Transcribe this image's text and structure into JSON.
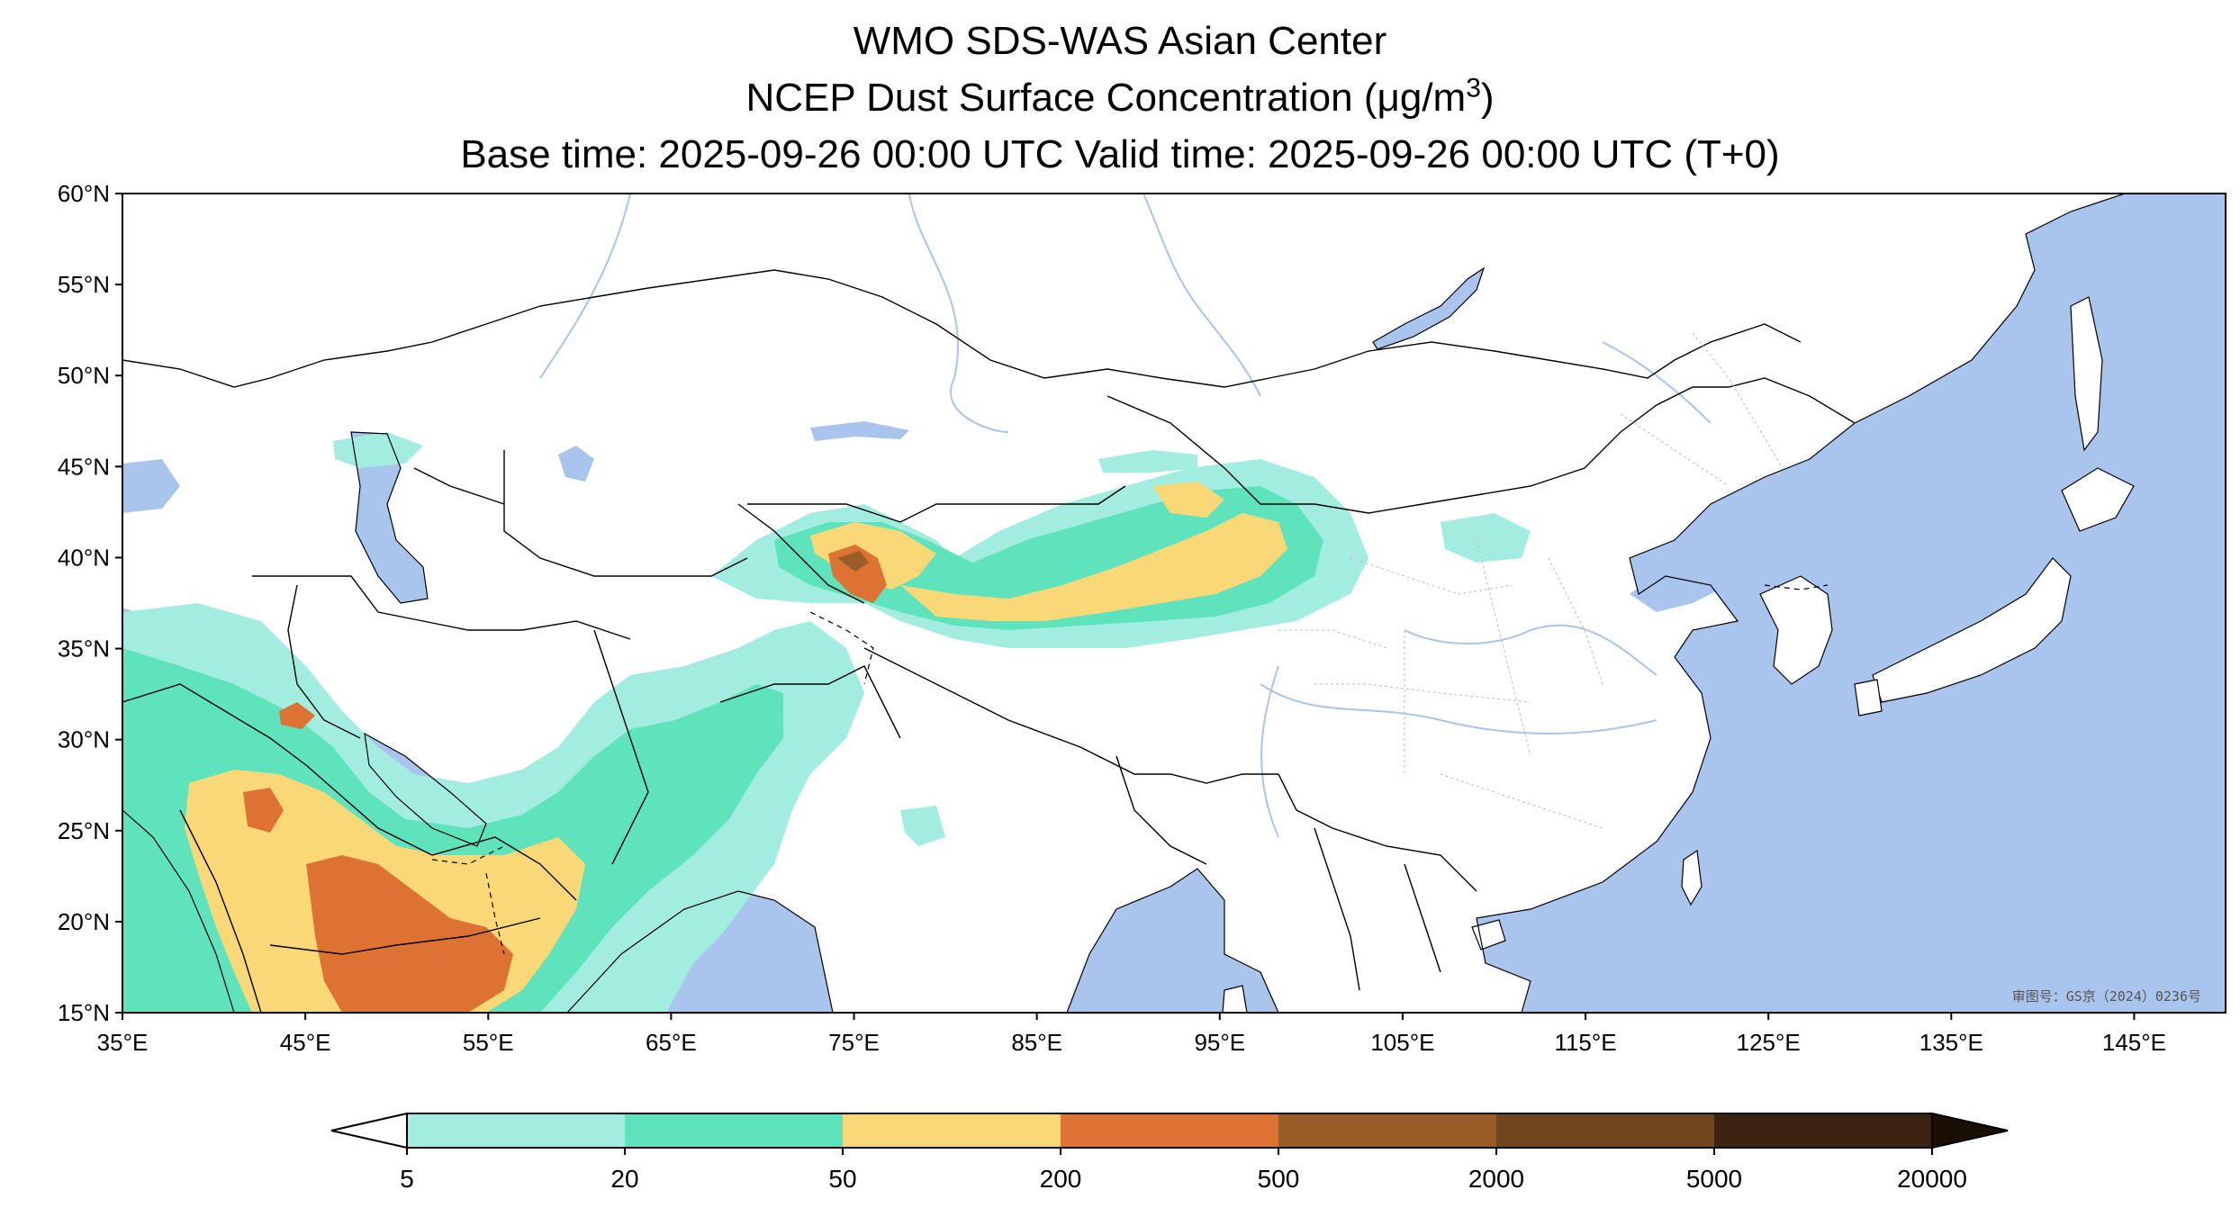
{
  "title": {
    "line1": "WMO SDS-WAS Asian Center",
    "line2_prefix": "NCEP Dust Surface Concentration (",
    "line2_unit_mu": "μ",
    "line2_unit_main": "g/m",
    "line2_unit_exp": "3",
    "line2_suffix": ")",
    "line3": "Base time: 2025-09-26 00:00 UTC Valid time: 2025-09-26 00:00 UTC (T+0)"
  },
  "map_extent": {
    "lon_min": 35,
    "lon_max": 150,
    "lat_min": 15,
    "lat_max": 60
  },
  "lon_ticks": [
    "35°E",
    "45°E",
    "55°E",
    "65°E",
    "75°E",
    "85°E",
    "95°E",
    "105°E",
    "115°E",
    "125°E",
    "135°E",
    "145°E"
  ],
  "lat_ticks": [
    "60°N",
    "55°N",
    "50°N",
    "45°N",
    "40°N",
    "35°N",
    "30°N",
    "25°N",
    "20°N",
    "15°N"
  ],
  "colorbar": {
    "levels": [
      "5",
      "20",
      "50",
      "200",
      "500",
      "2000",
      "5000",
      "20000"
    ],
    "colors": [
      "#a3ede0",
      "#5ee3bd",
      "#fad877",
      "#dc7332",
      "#9a5d28",
      "#6f461d",
      "#3b2412",
      "#1a0f05"
    ],
    "low_extend_color": "#ffffff",
    "high_extend_color": "#1a0f05"
  },
  "colors": {
    "ocean": "#a9c4ed",
    "land": "#ffffff",
    "border": "#000000",
    "river": "#a9c4ed"
  },
  "stamp": "审图号：GS京（2024）0236号"
}
